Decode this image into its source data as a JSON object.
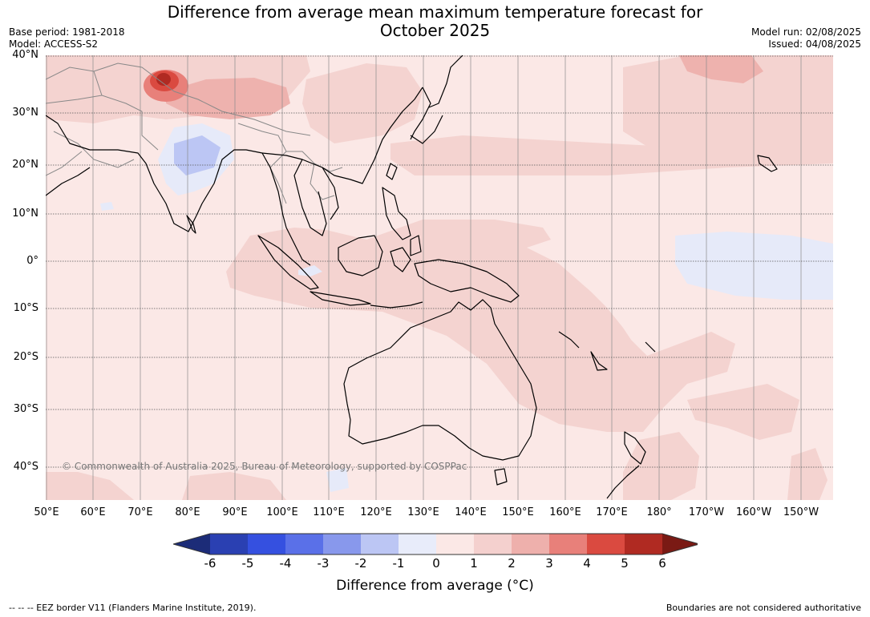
{
  "title_line1": "Difference from average mean maximum temperature forecast for",
  "title_line2": "October 2025",
  "base_period": "Base period: 1981-2018",
  "model": "Model: ACCESS-S2",
  "model_run": "Model run: 02/08/2025",
  "issued": "Issued: 04/08/2025",
  "copyright": "© Commonwealth of Australia 2025, Bureau of Meteorology, supported by COSPPac",
  "lat_labels": [
    "40°N",
    "30°N",
    "20°N",
    "10°N",
    "0°",
    "10°S",
    "20°S",
    "30°S",
    "40°S"
  ],
  "lon_labels": [
    "50°E",
    "60°E",
    "70°E",
    "80°E",
    "90°E",
    "100°E",
    "110°E",
    "120°E",
    "130°E",
    "140°E",
    "150°E",
    "160°E",
    "170°E",
    "180°",
    "170°W",
    "160°W",
    "150°W"
  ],
  "colorbar": {
    "ticks": [
      "-6",
      "-5",
      "-4",
      "-3",
      "-2",
      "-1",
      "0",
      "1",
      "2",
      "3",
      "4",
      "5",
      "6"
    ],
    "colors": [
      "#1c2c78",
      "#2a40b2",
      "#3550e0",
      "#5a70e8",
      "#8898ec",
      "#bcc6f4",
      "#e8ecfa",
      "#fbe8e6",
      "#f4d0ce",
      "#eeb0ac",
      "#e8807a",
      "#da4a40",
      "#b02a22",
      "#7a1a14"
    ],
    "label": "Difference from average (°C)"
  },
  "footer_left": "--  --  -- EEZ border V11 (Flanders Marine Institute, 2019).",
  "footer_right": "Boundaries are not considered authoritative"
}
